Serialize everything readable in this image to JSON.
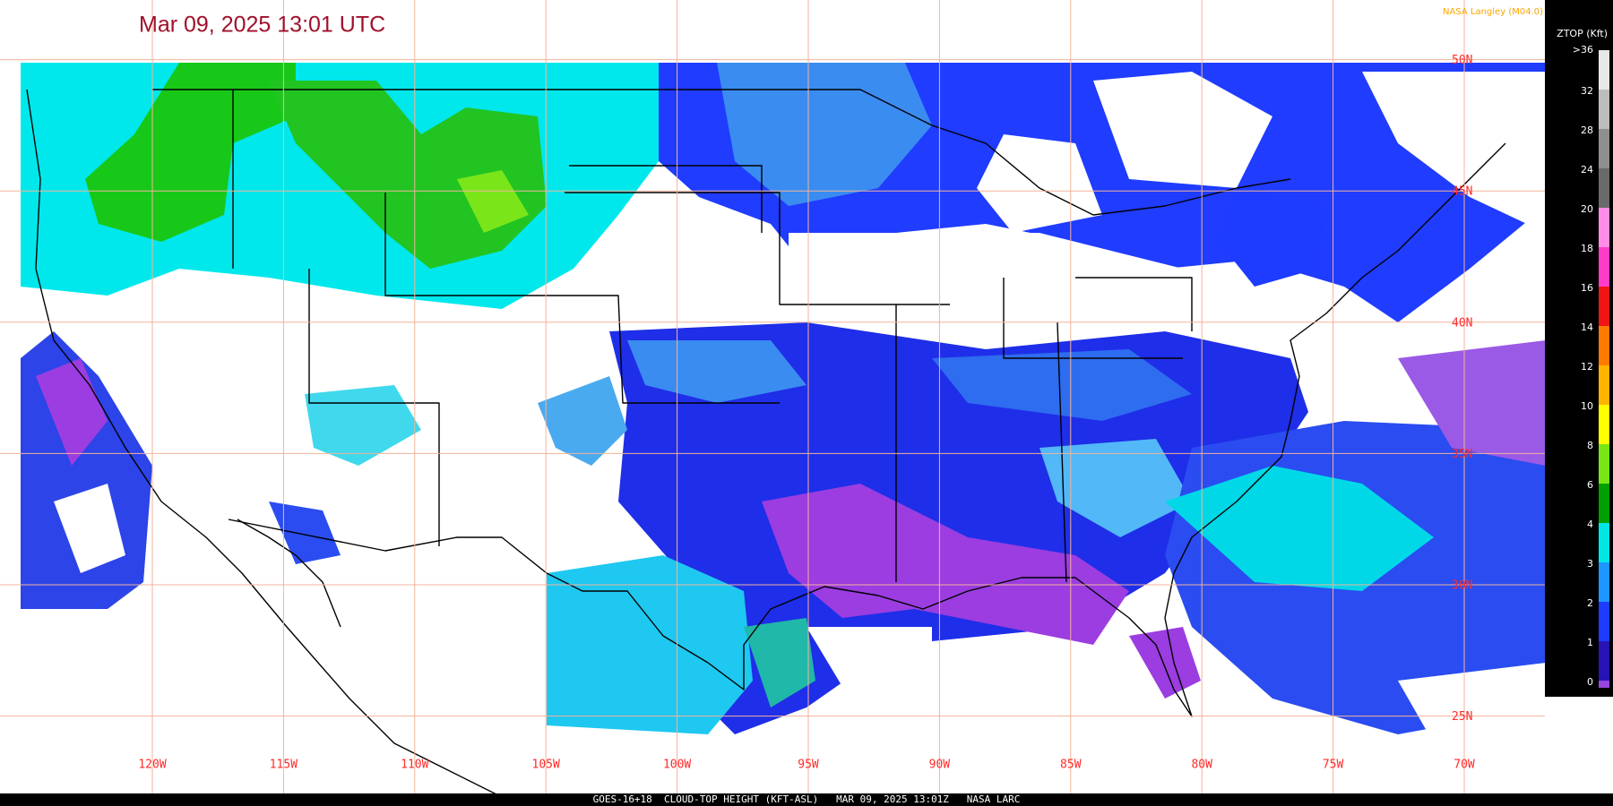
{
  "title": "Mar 09, 2025 13:01 UTC",
  "credit": "NASA Langley (M04.0)",
  "legend": {
    "title": "ZTOP (Kft)",
    "entries": [
      {
        "label": ">36",
        "color": "#e8e8e8"
      },
      {
        "label": "32",
        "color": "#bdbdbd"
      },
      {
        "label": "28",
        "color": "#8f8f8f"
      },
      {
        "label": "24",
        "color": "#6a6a6a"
      },
      {
        "label": "20",
        "color": "#ff8ce6"
      },
      {
        "label": "18",
        "color": "#ff3cc8"
      },
      {
        "label": "16",
        "color": "#f01414"
      },
      {
        "label": "14",
        "color": "#ff7a00"
      },
      {
        "label": "12",
        "color": "#ffb400"
      },
      {
        "label": "10",
        "color": "#ffff00"
      },
      {
        "label": "8",
        "color": "#78e614"
      },
      {
        "label": "6",
        "color": "#00a000"
      },
      {
        "label": "4",
        "color": "#00e6e6"
      },
      {
        "label": "3",
        "color": "#1e96ff"
      },
      {
        "label": "2",
        "color": "#1e3cff"
      },
      {
        "label": "1",
        "color": "#2814b4"
      },
      {
        "label": "0",
        "color": "#9646dc"
      }
    ]
  },
  "latitude_labels": [
    "50N",
    "45N",
    "40N",
    "35N",
    "30N",
    "25N"
  ],
  "longitude_labels": [
    "120W",
    "115W",
    "110W",
    "105W",
    "100W",
    "95W",
    "90W",
    "85W",
    "80W",
    "75W",
    "70W"
  ],
  "footer": "GOES-16+18  CLOUD-TOP HEIGHT (KFT-ASL)   MAR 09, 2025 13:01Z   NASA LARC"
}
